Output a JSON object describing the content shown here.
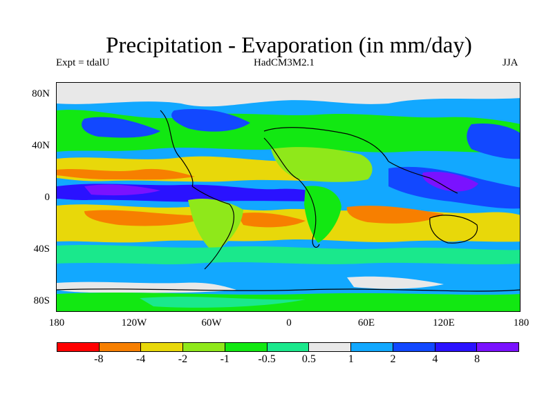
{
  "title": "Precipitation - Evaporation (in mm/day)",
  "subtitle_left": "Expt = tdalU",
  "subtitle_center": "HadCM3M2.1",
  "subtitle_right": "JJA",
  "y_ticks": [
    "80N",
    "40N",
    "0",
    "40S",
    "80S"
  ],
  "x_ticks": [
    "180",
    "120W",
    "60W",
    "0",
    "60E",
    "120E",
    "180"
  ],
  "colorbar": {
    "colors": [
      "#ff0000",
      "#f77f00",
      "#e8d80a",
      "#8fe81a",
      "#12e812",
      "#1ae88c",
      "#e8e8e8",
      "#12a8ff",
      "#1248ff",
      "#2a12ff",
      "#7a12ff"
    ],
    "labels": [
      "-8",
      "-4",
      "-2",
      "-1",
      "-0.5",
      "0.5",
      "1",
      "2",
      "4",
      "8"
    ]
  },
  "colors": {
    "polar_grey": "#e8e8e8",
    "ocean_blue": "#12a8ff",
    "deep_blue": "#1248ff",
    "violet": "#2a12ff",
    "purple": "#7a12ff",
    "green": "#12e812",
    "teal": "#1ae88c",
    "lime": "#8fe81a",
    "yellow": "#e8d80a",
    "orange": "#f77f00"
  }
}
